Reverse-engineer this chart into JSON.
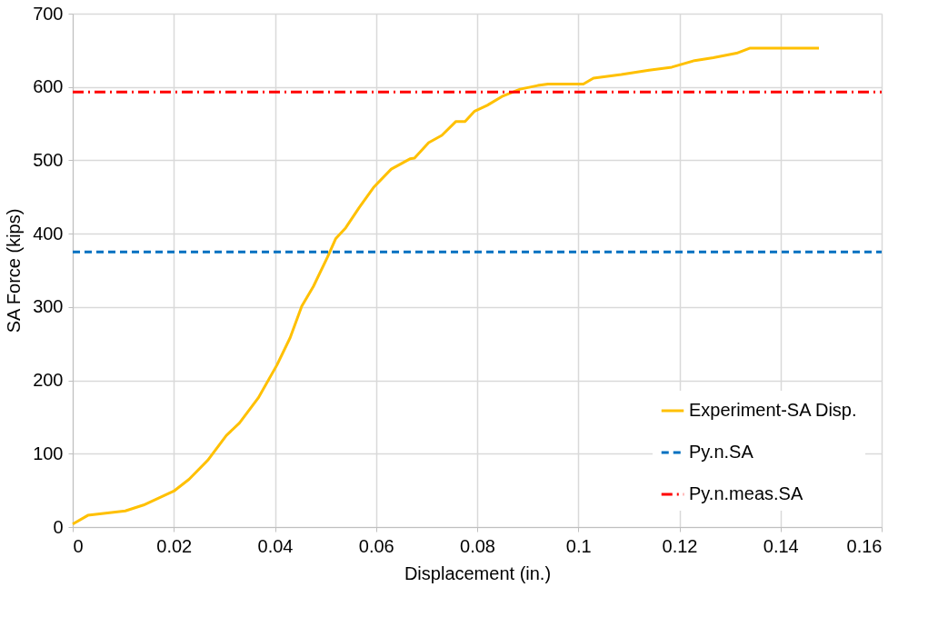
{
  "chart_data": {
    "type": "line",
    "xlabel": "Displacement (in.)",
    "ylabel": "SA Force (kips)",
    "xlim": [
      0,
      0.16
    ],
    "xticks": [
      0,
      0.02,
      0.04,
      0.06,
      0.08,
      0.1,
      0.12,
      0.14,
      0.16
    ],
    "ylim": [
      0,
      700
    ],
    "yticks": [
      0,
      100,
      200,
      300,
      400,
      500,
      600,
      700
    ],
    "grid": true,
    "legend": "bottom right",
    "marker": "none",
    "series": [
      {
        "name": "Experiment-SA Disp.",
        "color": "#ffc000",
        "line_style": "solid",
        "x": [
          0,
          0.003,
          0.0104,
          0.014,
          0.02,
          0.023,
          0.0267,
          0.0304,
          0.033,
          0.0367,
          0.0404,
          0.043,
          0.0453,
          0.0476,
          0.0504,
          0.052,
          0.054,
          0.0567,
          0.0595,
          0.063,
          0.0667,
          0.0676,
          0.0704,
          0.073,
          0.0758,
          0.0776,
          0.0795,
          0.082,
          0.0849,
          0.0885,
          0.092,
          0.094,
          0.101,
          0.103,
          0.1085,
          0.114,
          0.1185,
          0.123,
          0.1267,
          0.1313,
          0.134,
          0.1476
        ],
        "values": [
          4,
          16,
          22,
          30,
          49,
          65,
          91,
          125,
          142,
          176,
          221,
          258,
          301,
          328,
          368,
          393,
          408,
          436,
          463,
          488,
          502,
          503,
          524,
          534,
          553,
          553,
          567,
          575,
          587,
          597,
          602,
          604,
          604,
          612,
          617,
          623,
          627,
          636,
          640,
          646,
          653,
          653
        ]
      },
      {
        "name": "Py.n.SA",
        "color": "#0070c0",
        "line_style": "dashed",
        "x": [
          0,
          0.16
        ],
        "values": [
          375,
          375
        ]
      },
      {
        "name": "Py.n.meas.SA",
        "color": "#ff0000",
        "line_style": "dashdot",
        "x": [
          0,
          0.16
        ],
        "values": [
          593,
          593
        ]
      }
    ]
  }
}
